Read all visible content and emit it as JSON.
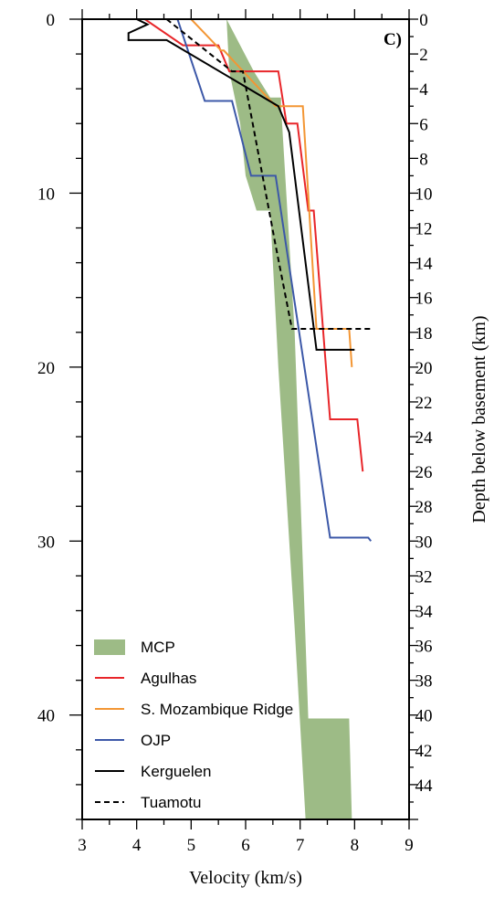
{
  "chart_data": {
    "type": "line",
    "panel_label": "C)",
    "xlabel": "Velocity (km/s)",
    "ylabel_right": "Depth below basement (km)",
    "xlim": [
      3,
      9
    ],
    "ylim_left": [
      0,
      46
    ],
    "ylim_right": [
      0,
      46
    ],
    "y_inverted": true,
    "x_ticks": [
      3,
      4,
      5,
      6,
      7,
      8,
      9
    ],
    "left_ticks": [
      0,
      10,
      20,
      30,
      40
    ],
    "right_ticks": [
      0,
      2,
      4,
      6,
      8,
      10,
      12,
      14,
      16,
      18,
      20,
      22,
      24,
      26,
      28,
      30,
      32,
      34,
      36,
      38,
      40,
      42,
      44
    ],
    "legend_position": "bottom-left",
    "colors": {
      "MCP": "#9dbb86",
      "Agulhas": "#e8262a",
      "S. Mozambique Ridge": "#f39634",
      "OJP": "#3c58a8",
      "Kerguelen": "#000000",
      "Tuamotu": "#000000"
    },
    "series": [
      {
        "name": "MCP",
        "style": "filled-area",
        "polygon": [
          [
            5.65,
            0.0
          ],
          [
            6.15,
            3.0
          ],
          [
            6.45,
            4.5
          ],
          [
            6.65,
            4.5
          ],
          [
            6.65,
            5.0
          ],
          [
            6.9,
            18.0
          ],
          [
            7.15,
            40.2
          ],
          [
            7.9,
            40.2
          ],
          [
            7.95,
            46.0
          ],
          [
            7.1,
            46.0
          ],
          [
            6.9,
            35.0
          ],
          [
            6.6,
            20.0
          ],
          [
            6.45,
            11.0
          ],
          [
            6.2,
            11.0
          ],
          [
            6.0,
            9.0
          ],
          [
            5.9,
            6.0
          ],
          [
            5.7,
            3.0
          ]
        ]
      },
      {
        "name": "Agulhas",
        "style": "solid",
        "points": [
          [
            4.15,
            0.0
          ],
          [
            4.85,
            1.5
          ],
          [
            5.5,
            1.5
          ],
          [
            5.7,
            3.0
          ],
          [
            6.6,
            3.0
          ],
          [
            6.75,
            6.0
          ],
          [
            6.95,
            6.0
          ],
          [
            7.15,
            11.0
          ],
          [
            7.25,
            11.0
          ],
          [
            7.55,
            23.0
          ],
          [
            8.05,
            23.0
          ],
          [
            8.15,
            26.0
          ]
        ]
      },
      {
        "name": "S. Mozambique Ridge",
        "style": "solid",
        "points": [
          [
            5.0,
            0.0
          ],
          [
            5.55,
            1.8
          ],
          [
            5.6,
            1.8
          ],
          [
            6.55,
            5.0
          ],
          [
            7.05,
            5.0
          ],
          [
            7.3,
            17.8
          ],
          [
            7.9,
            17.8
          ],
          [
            7.95,
            20.0
          ]
        ]
      },
      {
        "name": "OJP",
        "style": "solid",
        "points": [
          [
            4.75,
            0.0
          ],
          [
            5.25,
            4.7
          ],
          [
            5.75,
            4.7
          ],
          [
            6.1,
            9.0
          ],
          [
            6.55,
            9.0
          ],
          [
            7.55,
            29.8
          ],
          [
            8.25,
            29.8
          ],
          [
            8.3,
            30.0
          ]
        ]
      },
      {
        "name": "Kerguelen",
        "style": "solid",
        "points": [
          [
            4.0,
            0.0
          ],
          [
            4.2,
            0.3
          ],
          [
            3.85,
            0.8
          ],
          [
            3.85,
            1.2
          ],
          [
            4.55,
            1.2
          ],
          [
            6.6,
            5.0
          ],
          [
            6.8,
            6.5
          ],
          [
            7.3,
            19.0
          ],
          [
            8.0,
            19.0
          ]
        ]
      },
      {
        "name": "Tuamotu",
        "style": "dashed",
        "points": [
          [
            4.55,
            0.0
          ],
          [
            5.75,
            3.0
          ],
          [
            5.95,
            3.0
          ],
          [
            6.55,
            13.0
          ],
          [
            6.85,
            17.8
          ],
          [
            8.3,
            17.8
          ]
        ]
      }
    ]
  }
}
